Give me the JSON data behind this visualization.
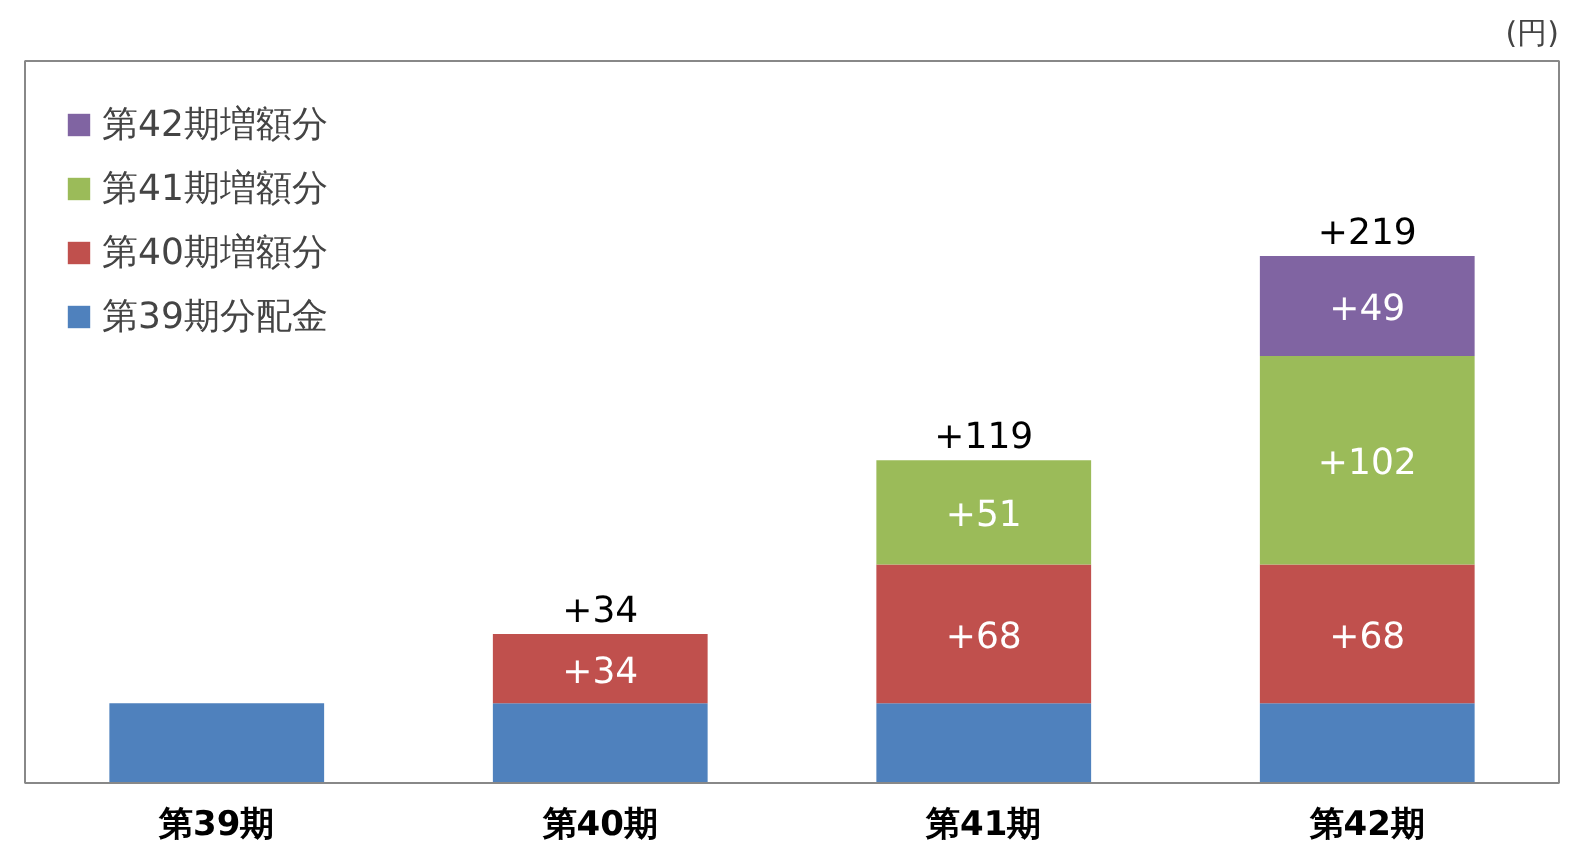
{
  "chart_data": {
    "type": "bar",
    "stacked": true,
    "categories": [
      "第39期",
      "第40期",
      "第41期",
      "第42期"
    ],
    "series": [
      {
        "name": "第39期分配金",
        "color": "#4f81bd",
        "values": [
          39,
          39,
          39,
          39
        ]
      },
      {
        "name": "第40期増額分",
        "color": "#c0504d",
        "values": [
          null,
          34,
          68,
          68
        ],
        "value_labels": [
          null,
          "+34",
          "+68",
          "+68"
        ]
      },
      {
        "name": "第41期増額分",
        "color": "#9bbb59",
        "values": [
          null,
          null,
          51,
          102
        ],
        "value_labels": [
          null,
          null,
          "+51",
          "+102"
        ]
      },
      {
        "name": "第42期増額分",
        "color": "#8064a2",
        "values": [
          null,
          null,
          null,
          49
        ],
        "value_labels": [
          null,
          null,
          null,
          "+49"
        ]
      }
    ],
    "annotations": [
      "(円)",
      {
        "text": "+34",
        "x": "第40期",
        "y": 73
      },
      {
        "text": "+119",
        "x": "第41期",
        "y": 158
      },
      {
        "text": "+219",
        "x": "第42期",
        "y": 258
      }
    ],
    "legend": "top left",
    "grid": false
  }
}
